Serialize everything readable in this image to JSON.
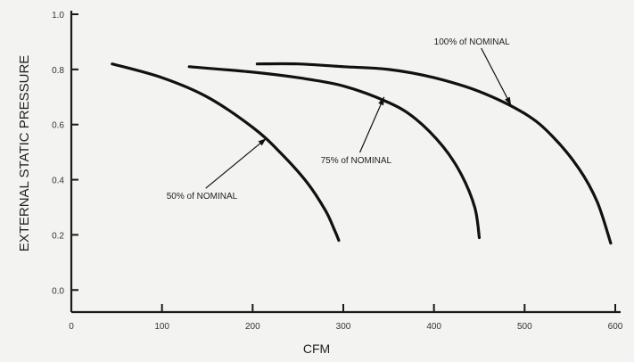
{
  "chart_data": {
    "type": "line",
    "xlabel": "CFM",
    "ylabel": "EXTERNAL STATIC PRESSURE",
    "xlim": [
      0,
      600
    ],
    "ylim": [
      -0.08,
      1.0
    ],
    "x_ticks": [
      "0",
      "100",
      "200",
      "300",
      "400",
      "500",
      "600"
    ],
    "y_ticks": [
      "0.0",
      "0.2",
      "0.4",
      "0.6",
      "0.8",
      "1.0"
    ],
    "grid": false,
    "series": [
      {
        "name": "50% of NOMINAL",
        "x": [
          45,
          100,
          150,
          200,
          230,
          260,
          280,
          290,
          295
        ],
        "y": [
          0.82,
          0.77,
          0.7,
          0.59,
          0.5,
          0.39,
          0.29,
          0.22,
          0.18
        ]
      },
      {
        "name": "75% of NOMINAL",
        "x": [
          130,
          200,
          250,
          300,
          350,
          380,
          410,
          430,
          445,
          450
        ],
        "y": [
          0.81,
          0.79,
          0.77,
          0.74,
          0.68,
          0.62,
          0.52,
          0.42,
          0.3,
          0.19
        ]
      },
      {
        "name": "100% of NOMINAL",
        "x": [
          205,
          250,
          300,
          350,
          400,
          450,
          500,
          530,
          560,
          580,
          595
        ],
        "y": [
          0.82,
          0.82,
          0.81,
          0.8,
          0.77,
          0.72,
          0.64,
          0.56,
          0.44,
          0.32,
          0.17
        ]
      }
    ],
    "annotations": [
      {
        "text": "50% of NOMINAL",
        "series": 0,
        "text_x": 105,
        "text_y": 0.33,
        "point_x": 215,
        "point_y": 0.55
      },
      {
        "text": "75% of NOMINAL",
        "series": 1,
        "text_x": 275,
        "text_y": 0.46,
        "point_x": 345,
        "point_y": 0.7
      },
      {
        "text": "100% of NOMINAL",
        "series": 2,
        "text_x": 400,
        "text_y": 0.89,
        "point_x": 485,
        "point_y": 0.67
      }
    ]
  }
}
